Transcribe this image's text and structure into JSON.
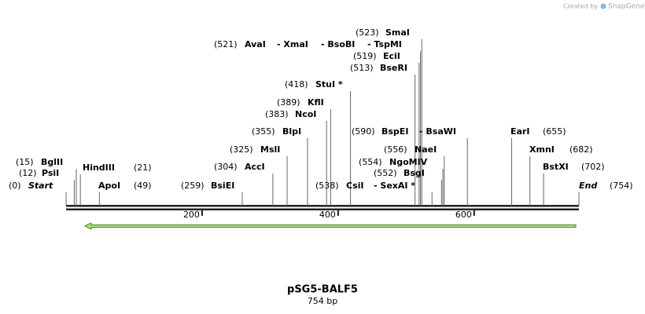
{
  "watermark": {
    "prefix": "Created by",
    "brand": "SnapGene"
  },
  "map": {
    "title": "pSG5-BALF5",
    "length": 754,
    "length_label": "754 bp",
    "ticks": [
      200,
      400,
      600
    ]
  },
  "sites": [
    {
      "position": 0,
      "position_label": "(0)",
      "names": [
        "Start"
      ]
    },
    {
      "position": 12,
      "position_label": "(12)",
      "names": [
        "PsiI"
      ]
    },
    {
      "position": 15,
      "position_label": "(15)",
      "names": [
        "BglII"
      ]
    },
    {
      "position": 21,
      "position_label": "(21)",
      "names": [
        "HindIII"
      ]
    },
    {
      "position": 49,
      "position_label": "(49)",
      "names": [
        "ApoI"
      ]
    },
    {
      "position": 259,
      "position_label": "(259)",
      "names": [
        "BsiEI"
      ]
    },
    {
      "position": 304,
      "position_label": "(304)",
      "names": [
        "AccI"
      ]
    },
    {
      "position": 325,
      "position_label": "(325)",
      "names": [
        "MslI"
      ]
    },
    {
      "position": 355,
      "position_label": "(355)",
      "names": [
        "BlpI"
      ]
    },
    {
      "position": 383,
      "position_label": "(383)",
      "names": [
        "NcoI"
      ]
    },
    {
      "position": 389,
      "position_label": "(389)",
      "names": [
        "KflI"
      ]
    },
    {
      "position": 418,
      "position_label": "(418)",
      "names": [
        "StuI *"
      ]
    },
    {
      "position": 538,
      "position_label": "(538)",
      "names": [
        "CsiI",
        "- SexAI *"
      ]
    },
    {
      "position": 521,
      "position_label": "(521)",
      "names": [
        "AvaI",
        "- XmaI",
        "- BsoBI",
        "- TspMI"
      ]
    },
    {
      "position": 523,
      "position_label": "(523)",
      "names": [
        "SmaI"
      ]
    },
    {
      "position": 519,
      "position_label": "(519)",
      "names": [
        "EciI"
      ]
    },
    {
      "position": 513,
      "position_label": "(513)",
      "names": [
        "BseRI"
      ]
    },
    {
      "position": 590,
      "position_label": "(590)",
      "names": [
        "BspEI",
        "- BsaWI"
      ]
    },
    {
      "position": 556,
      "position_label": "(556)",
      "names": [
        "NaeI"
      ]
    },
    {
      "position": 554,
      "position_label": "(554)",
      "names": [
        "NgoMIV"
      ]
    },
    {
      "position": 552,
      "position_label": "(552)",
      "names": [
        "BsgI"
      ]
    },
    {
      "position": 655,
      "position_label": "(655)",
      "names": [
        "EarI"
      ]
    },
    {
      "position": 682,
      "position_label": "(682)",
      "names": [
        "XmnI"
      ]
    },
    {
      "position": 702,
      "position_label": "(702)",
      "names": [
        "BstXI"
      ]
    },
    {
      "position": 754,
      "position_label": "(754)",
      "names": [
        "End"
      ]
    }
  ]
}
